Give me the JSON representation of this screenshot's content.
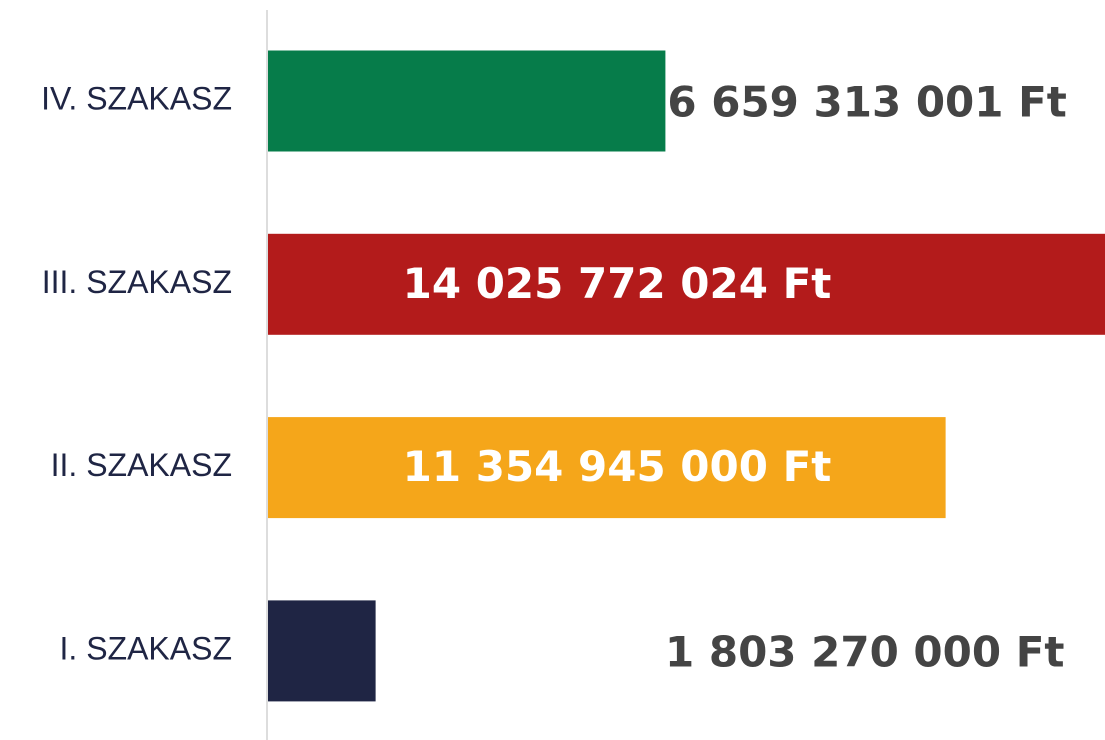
{
  "chart_data": {
    "type": "barh",
    "categories": [
      "IV. SZAKASZ",
      "III. SZAKASZ",
      "II. SZAKASZ",
      "I. SZAKASZ"
    ],
    "values": [
      6659313001,
      14025772024,
      11354945000,
      1803270000
    ],
    "value_labels": [
      "6 659 313 001 Ft",
      "14 025 772 024 Ft",
      "11 354 945 000 Ft",
      "1 803 270 000 Ft"
    ],
    "colors": [
      "#067c4a",
      "#b31b1b",
      "#f5a61a",
      "#1f2544"
    ]
  }
}
